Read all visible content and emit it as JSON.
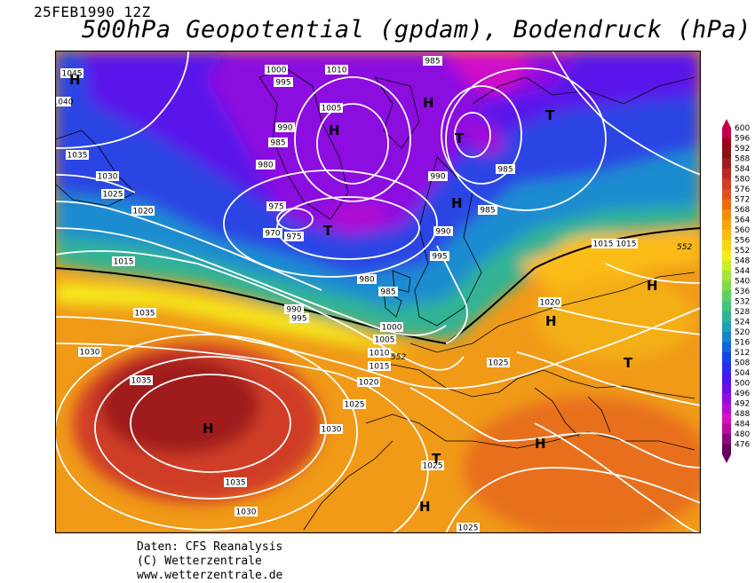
{
  "header": {
    "date": "25FEB1990 12Z",
    "title": "500hPa Geopotential (gpdam), Bodendruck (hPa)"
  },
  "legend": {
    "values": [
      "600",
      "596",
      "592",
      "588",
      "584",
      "580",
      "576",
      "572",
      "568",
      "564",
      "560",
      "556",
      "552",
      "548",
      "544",
      "540",
      "536",
      "532",
      "528",
      "524",
      "520",
      "516",
      "512",
      "508",
      "504",
      "500",
      "496",
      "492",
      "488",
      "484",
      "480",
      "476"
    ],
    "colors": [
      "#c8004a",
      "#a00020",
      "#8c1014",
      "#a01c1c",
      "#bc2a22",
      "#d03c28",
      "#e0501e",
      "#ec6c10",
      "#f48a0c",
      "#f8a410",
      "#fcbc14",
      "#f8d414",
      "#f4ec1c",
      "#c8ec2c",
      "#a4e43c",
      "#80d84c",
      "#5cd064",
      "#44c47c",
      "#30b494",
      "#20a0b4",
      "#1884cc",
      "#1464dc",
      "#1444e4",
      "#2c2cec",
      "#4818ec",
      "#6c0ce8",
      "#900ce0",
      "#b00cd4",
      "#d410c0",
      "#b40c9c",
      "#8c0878",
      "#64045c"
    ],
    "color_high": "#c8004a",
    "color_low": "#64045c"
  },
  "map": {
    "pressure_labels": [
      "1045",
      "1040",
      "1035",
      "1030",
      "1025",
      "1020",
      "1015",
      "1000",
      "995",
      "1010",
      "1005",
      "985",
      "980",
      "975",
      "970",
      "990",
      "985",
      "1035",
      "1030",
      "1025",
      "1020",
      "1015",
      "1030",
      "1025",
      "1035",
      "1030",
      "1025",
      "1015",
      "1020",
      "1025",
      "1010",
      "1005",
      "1000",
      "990",
      "995",
      "985",
      "980",
      "975",
      "985",
      "990",
      "995",
      "990",
      "985",
      "1015",
      "1020",
      "1025",
      "1030",
      "1025",
      "1025",
      "1035",
      "1030"
    ],
    "geopotential_labels": [
      "552",
      "552"
    ],
    "centers_high": [
      "H",
      "H",
      "H",
      "H",
      "H",
      "H",
      "H",
      "H",
      "H",
      "H"
    ],
    "centers_low": [
      "T",
      "T",
      "T",
      "T",
      "T"
    ]
  },
  "credits": {
    "line1": "Daten: CFS Reanalysis",
    "line2": "(C) Wetterzentrale",
    "line3": "www.wetterzentrale.de"
  }
}
